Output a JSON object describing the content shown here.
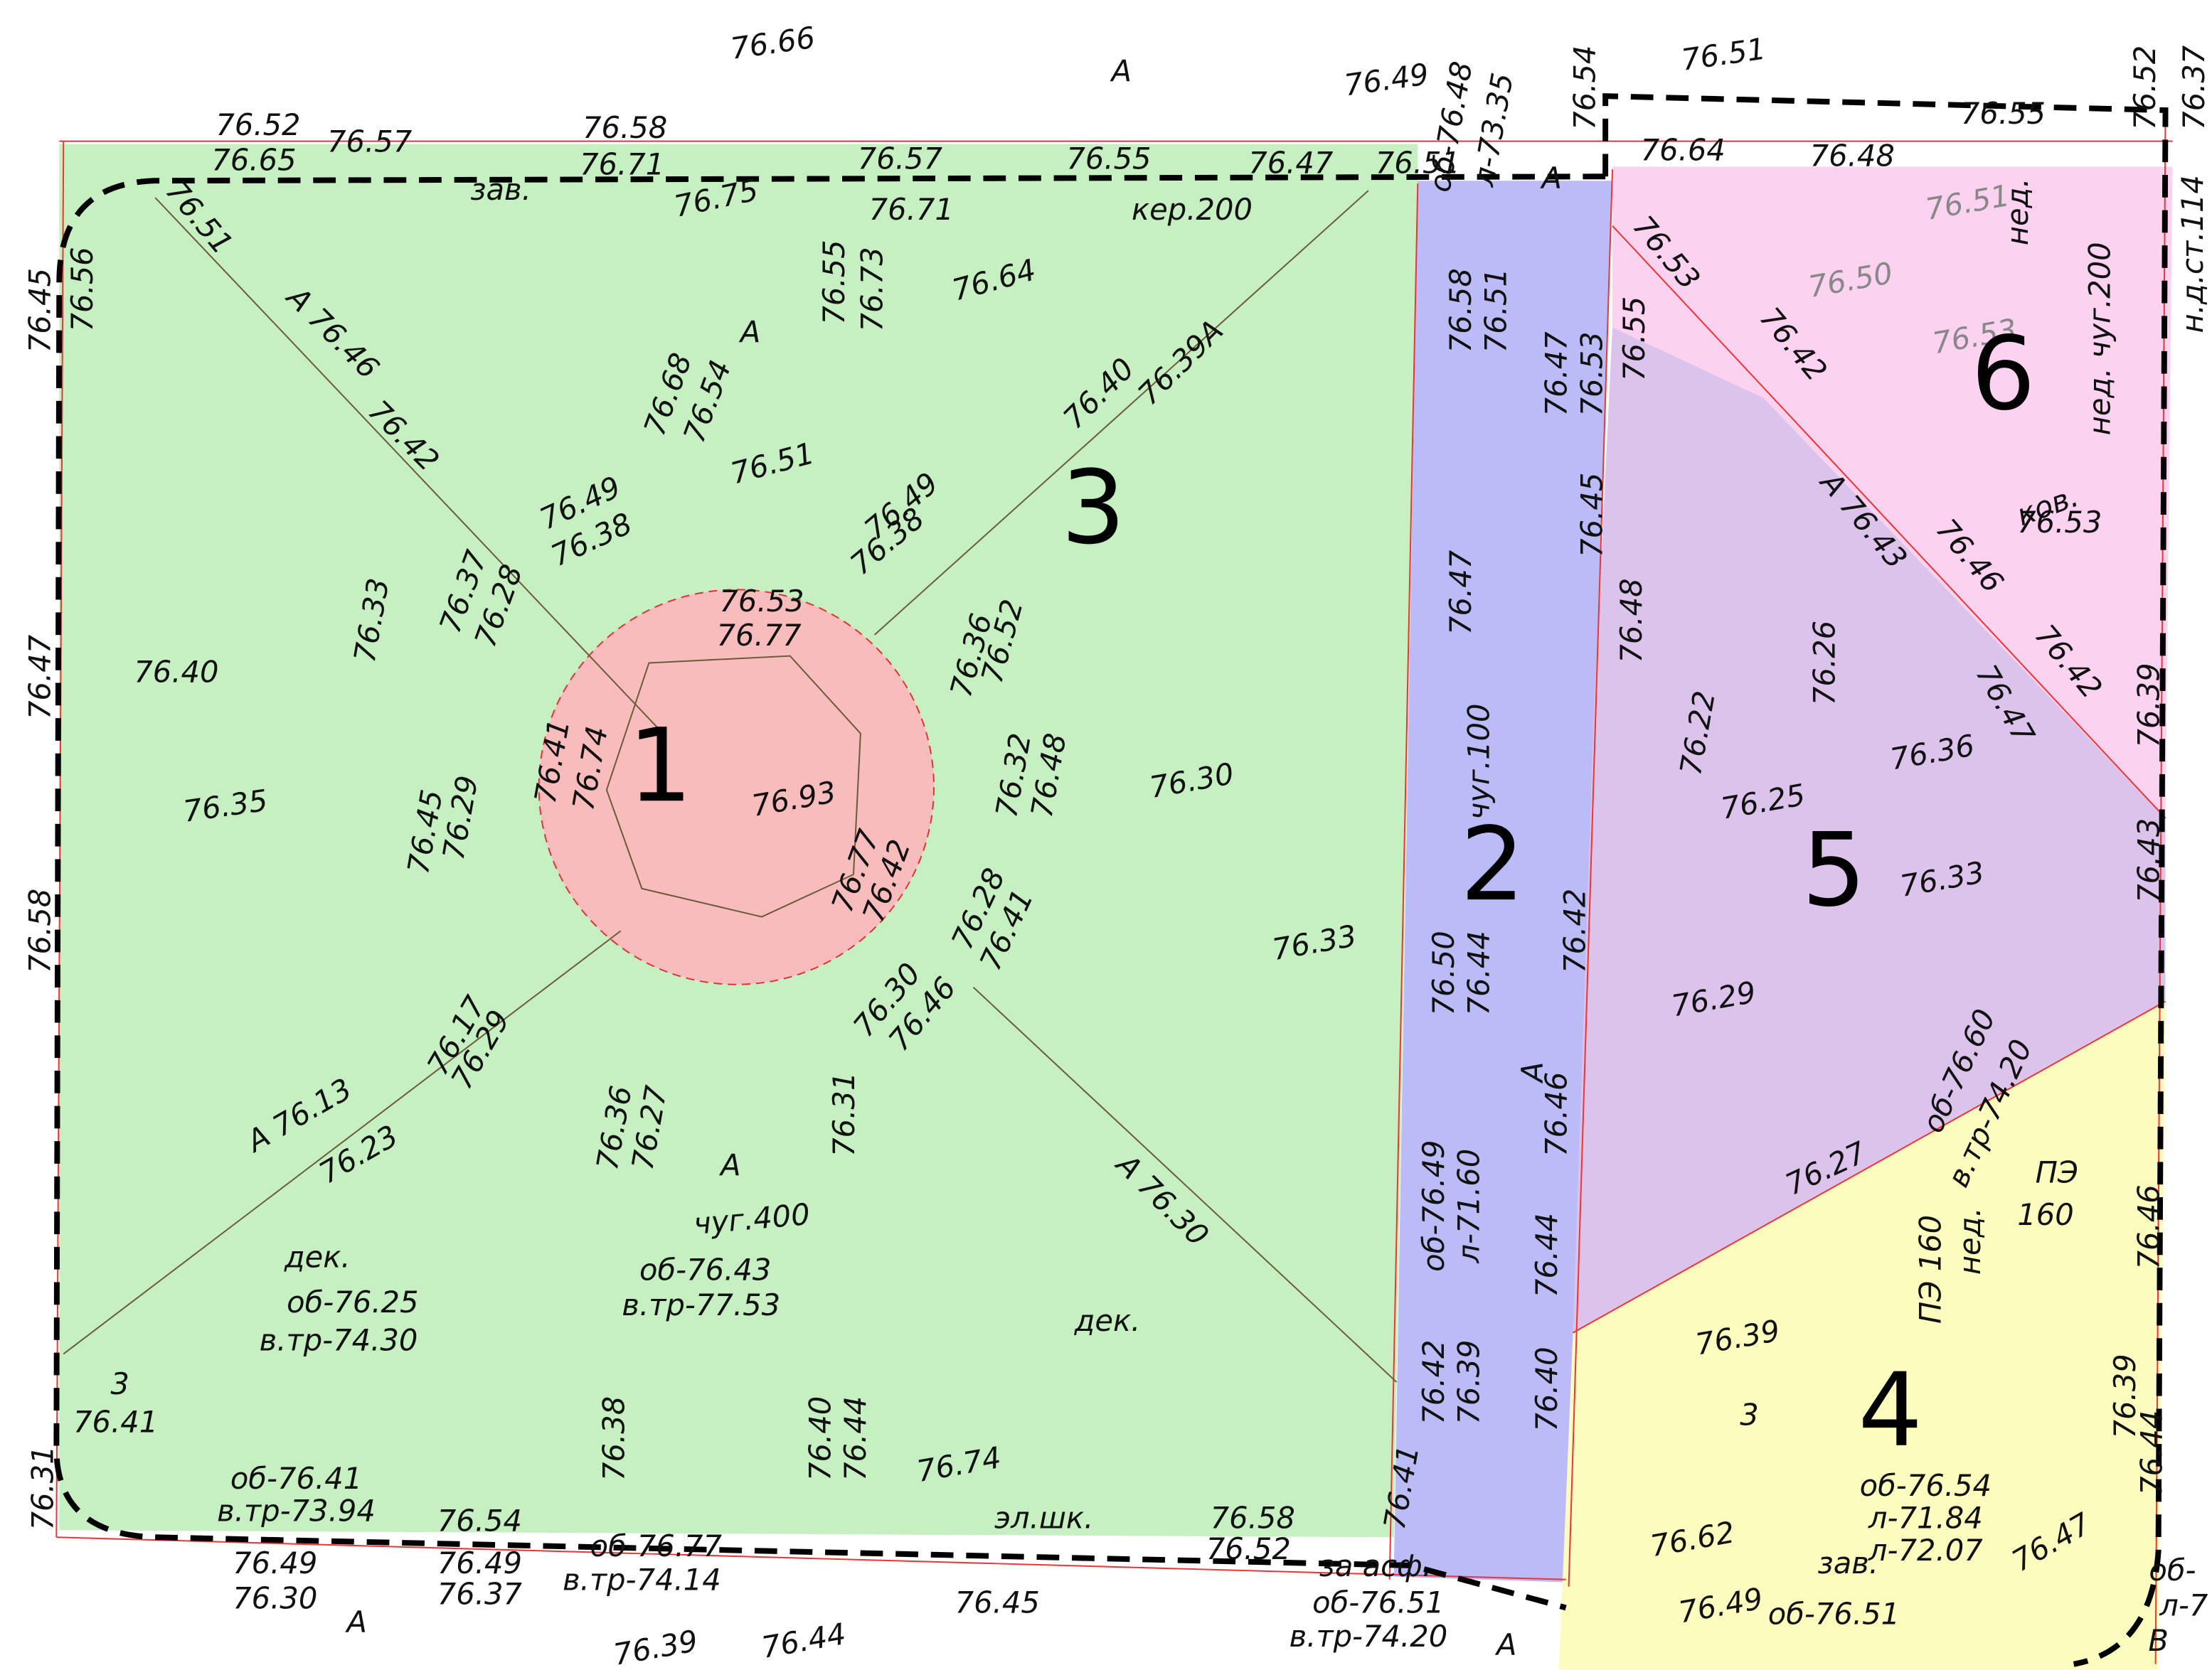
{
  "zones": [
    {
      "label": "1"
    },
    {
      "label": "2"
    },
    {
      "label": "3"
    },
    {
      "label": "4"
    },
    {
      "label": "5"
    },
    {
      "label": "6"
    }
  ],
  "labels": [
    "76.66",
    "А",
    "76.49",
    "76.51",
    "76.52",
    "76.65",
    "76.57",
    "76.58",
    "76.71",
    "зав.",
    "76.75",
    "76.57",
    "76.55",
    "76.47",
    "76.51",
    "76.71",
    "кер.200",
    "об-76.48",
    "л-73.35",
    "76.54",
    "А",
    "76.64",
    "76.48",
    "76.55",
    "76.52",
    "76.37",
    "76.51",
    "А 76.46",
    "76.42",
    "76.45",
    "76.56",
    "76.47",
    "76.58",
    "76.40",
    "76.35",
    "76.33",
    "76.37",
    "76.28",
    "76.49",
    "76.38",
    "76.68",
    "76.54",
    "А",
    "76.51",
    "76.55",
    "76.73",
    "76.64",
    "76.40",
    "76.39А",
    "76.49",
    "76.38",
    "76.53",
    "76.77",
    "76.41",
    "76.74",
    "76.93",
    "76.77",
    "76.42",
    "76.52",
    "76.36",
    "76.32",
    "76.48",
    "76.30",
    "76.33",
    "76.45",
    "76.29",
    "76.28",
    "76.41",
    "76.30",
    "76.46",
    "76.17",
    "76.29",
    "А 76.13",
    "76.23",
    "76.36",
    "76.27",
    "А",
    "76.31",
    "А 76.30",
    "чуг.400",
    "дек.",
    "об-76.43",
    "в.тр-77.53",
    "об-76.25",
    "в.тр-74.30",
    "дек.",
    "3",
    "76.41",
    "76.38",
    "76.40",
    "76.44",
    "76.74",
    "об-76.41",
    "в.тр-73.94",
    "76.54",
    "эл.шк.",
    "76.58",
    "76.52",
    "76.41",
    "76.49",
    "76.30",
    "76.49",
    "76.37",
    "об-76.77",
    "в.тр-74.14",
    "76.45",
    "за асф.",
    "об-76.51",
    "в.тр-74.20",
    "А",
    "А",
    "76.39",
    "76.44",
    "76.31",
    "76.58",
    "76.51",
    "76.47",
    "76.53",
    "76.45",
    "76.47",
    "чуг.100",
    "76.42",
    "76.50",
    "76.44",
    "А",
    "76.46",
    "об-76.49",
    "л-71.60",
    "76.44",
    "76.42",
    "76.39",
    "76.40",
    "76.53",
    "76.55",
    "76.42",
    "76.50",
    "76.51",
    "нед.",
    "76.53",
    "нед. чуг.200",
    "н.д.ст.114",
    "ков.",
    "76.53",
    "А 76.43",
    "76.46",
    "76.42",
    "76.47",
    "76.39",
    "76.48",
    "76.26",
    "76.22",
    "76.36",
    "76.25",
    "76.33",
    "76.43",
    "76.29",
    "76.27",
    "об-76.60",
    "в.тр-74.20",
    "ПЭ",
    "160",
    "ПЭ 160",
    "нед.",
    "76.46",
    "76.39",
    "3",
    "76.39",
    "76.44",
    "об-76.54",
    "л-71.84",
    "л-72.07",
    "76.62",
    "76.47",
    "зав.",
    "76.49",
    "об-76.51",
    "В",
    "об-",
    "л-7"
  ]
}
